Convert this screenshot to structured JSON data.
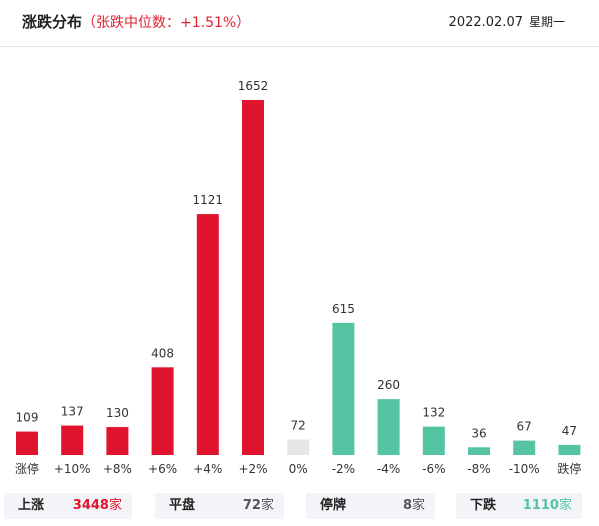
{
  "header": {
    "title": "涨跌分布",
    "subtitle": "（张跌中位数：+1.51%）",
    "date": "2022.02.07",
    "weekday": "星期一"
  },
  "colors": {
    "up": "#e0142c",
    "flat": "#e6e6e6",
    "down": "#55c4a2",
    "text": "#333333"
  },
  "chart_data": {
    "type": "bar",
    "categories": [
      "涨停",
      "+10%",
      "+8%",
      "+6%",
      "+4%",
      "+2%",
      "0%",
      "-2%",
      "-4%",
      "-6%",
      "-8%",
      "-10%",
      "跌停"
    ],
    "values": [
      109,
      137,
      130,
      408,
      1121,
      1652,
      72,
      615,
      260,
      132,
      36,
      67,
      47
    ],
    "bar_colors": [
      "up",
      "up",
      "up",
      "up",
      "up",
      "up",
      "flat",
      "down",
      "down",
      "down",
      "down",
      "down",
      "down"
    ],
    "ylim": [
      0,
      1652
    ]
  },
  "summary": [
    {
      "label": "上涨",
      "value": "3448",
      "unit": "家",
      "color": "#e0142c"
    },
    {
      "label": "平盘",
      "value": "72",
      "unit": "家",
      "color": "#555555"
    },
    {
      "label": "停牌",
      "value": "8",
      "unit": "家",
      "color": "#555555"
    },
    {
      "label": "下跌",
      "value": "1110",
      "unit": "家",
      "color": "#55c4a2"
    }
  ]
}
